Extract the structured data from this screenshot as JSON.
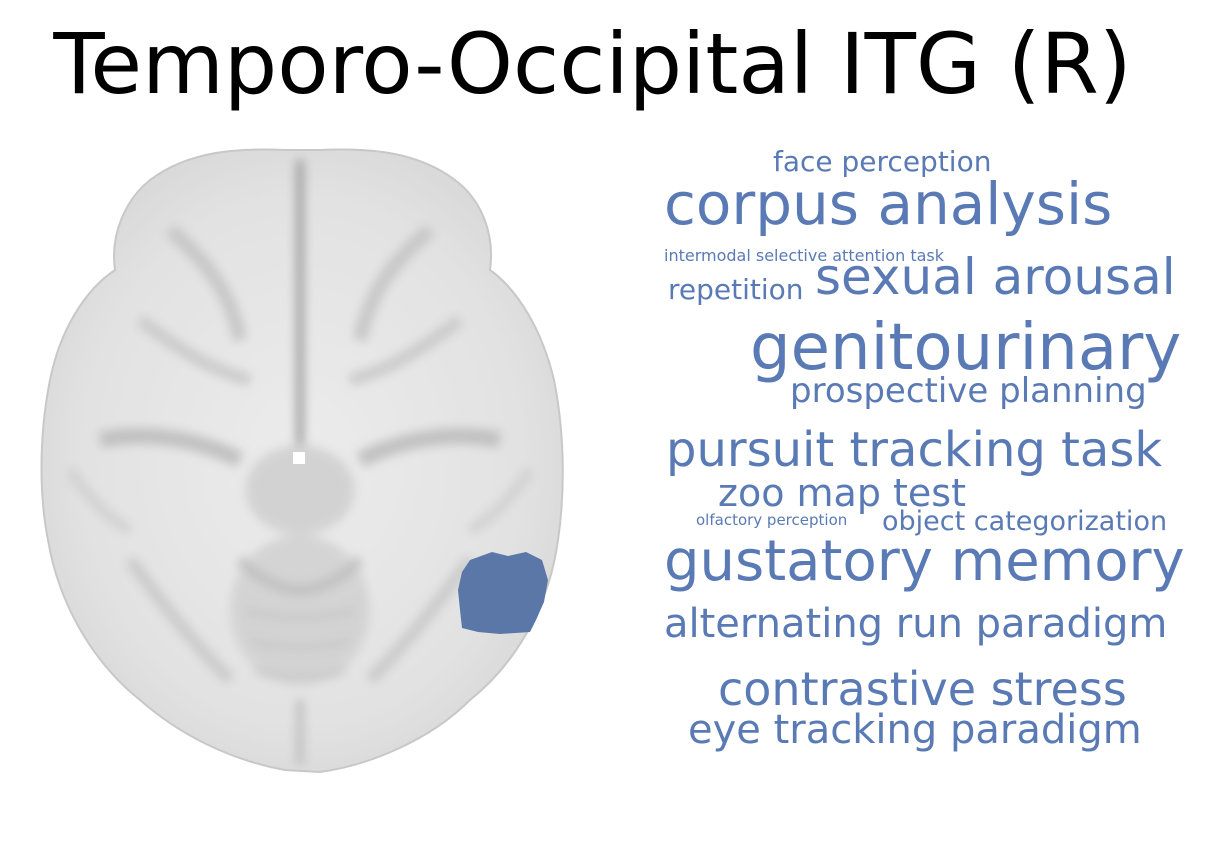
{
  "title": "Temporo-Occipital ITG (R)",
  "colors": {
    "word": "#5a7ab5",
    "region": "#5a77a8",
    "brain_light": "#f2f2f2",
    "brain_mid": "#d9d9d9",
    "brain_dark": "#b8b8b8"
  },
  "brain": {
    "view": "axial",
    "highlighted_region": "temporo-occipital-itg-right"
  },
  "wordcloud": {
    "words": [
      {
        "text": "face perception"
      },
      {
        "text": "corpus analysis"
      },
      {
        "text": "intermodal selective attention task"
      },
      {
        "text": "repetition"
      },
      {
        "text": "sexual arousal"
      },
      {
        "text": "genitourinary"
      },
      {
        "text": "prospective planning"
      },
      {
        "text": "pursuit tracking task"
      },
      {
        "text": "zoo map test"
      },
      {
        "text": "olfactory perception"
      },
      {
        "text": "object categorization"
      },
      {
        "text": "gustatory memory"
      },
      {
        "text": "alternating run paradigm"
      },
      {
        "text": "contrastive stress"
      },
      {
        "text": "eye tracking paradigm"
      }
    ]
  }
}
